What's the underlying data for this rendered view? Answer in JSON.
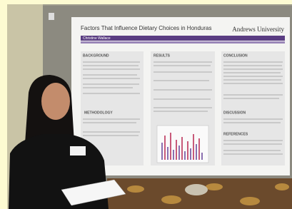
{
  "poster": {
    "title": "Factors That Influence Dietary Choices in Honduras",
    "institution": "Andrews University",
    "author": "Christine Wallace",
    "sections": [
      "BACKGROUND",
      "RESULTS",
      "CONCLUSION",
      "METHODOLOGY",
      "DISCUSSION",
      "REFERENCES"
    ]
  }
}
